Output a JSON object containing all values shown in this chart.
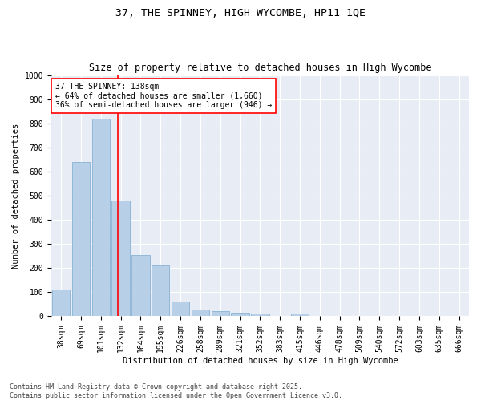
{
  "title": "37, THE SPINNEY, HIGH WYCOMBE, HP11 1QE",
  "subtitle": "Size of property relative to detached houses in High Wycombe",
  "xlabel": "Distribution of detached houses by size in High Wycombe",
  "ylabel": "Number of detached properties",
  "background_color": "#e8ecf5",
  "bar_color": "#b8cfe8",
  "bar_edge_color": "#7aaad0",
  "categories": [
    "38sqm",
    "69sqm",
    "101sqm",
    "132sqm",
    "164sqm",
    "195sqm",
    "226sqm",
    "258sqm",
    "289sqm",
    "321sqm",
    "352sqm",
    "383sqm",
    "415sqm",
    "446sqm",
    "478sqm",
    "509sqm",
    "540sqm",
    "572sqm",
    "603sqm",
    "635sqm",
    "666sqm"
  ],
  "values": [
    110,
    638,
    820,
    480,
    255,
    210,
    63,
    27,
    20,
    15,
    12,
    0,
    10,
    0,
    0,
    0,
    0,
    0,
    0,
    0,
    0
  ],
  "ylim": [
    0,
    1000
  ],
  "yticks": [
    0,
    100,
    200,
    300,
    400,
    500,
    600,
    700,
    800,
    900,
    1000
  ],
  "marker_label": "37 THE SPINNEY: 138sqm",
  "annotation_line1": "← 64% of detached houses are smaller (1,660)",
  "annotation_line2": "36% of semi-detached houses are larger (946) →",
  "footer": "Contains HM Land Registry data © Crown copyright and database right 2025.\nContains public sector information licensed under the Open Government Licence v3.0.",
  "title_fontsize": 9.5,
  "subtitle_fontsize": 8.5,
  "axis_label_fontsize": 7.5,
  "tick_fontsize": 7,
  "annotation_fontsize": 7,
  "footer_fontsize": 6
}
